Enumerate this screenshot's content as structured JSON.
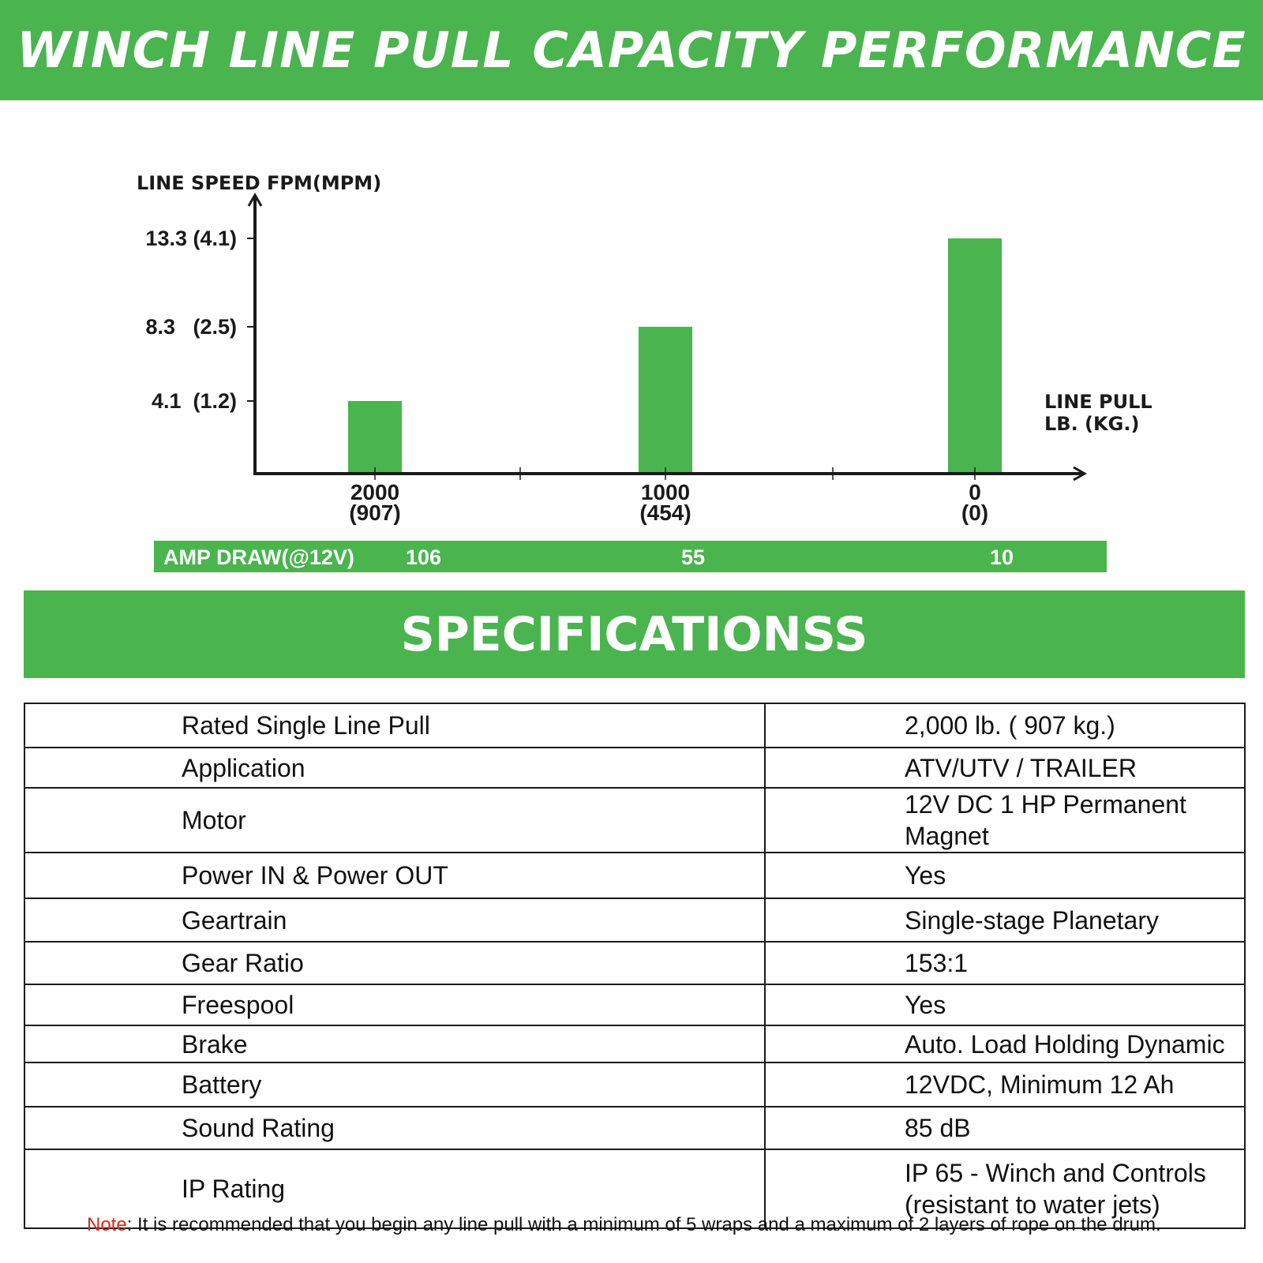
{
  "header": {
    "title": "WINCH LINE PULL CAPACITY PERFORMANCE"
  },
  "chart_data": {
    "type": "bar",
    "ylabel": "LINE SPEED FPM(MPM)",
    "xlabel_line1": "LINE PULL",
    "xlabel_line2": "LB. (KG.)",
    "ylim": [
      0,
      15
    ],
    "y_ticks": [
      {
        "value": 4.1,
        "label": "4.1  (1.2)"
      },
      {
        "value": 8.3,
        "label": "8.3   (2.5)"
      },
      {
        "value": 13.3,
        "label": "13.3 (4.1)"
      }
    ],
    "categories": [
      {
        "lb": "2000",
        "kg": "(907)"
      },
      {
        "lb": "1000",
        "kg": "(454)"
      },
      {
        "lb": "0",
        "kg": "(0)"
      }
    ],
    "values": [
      4.1,
      8.3,
      13.3
    ],
    "bar_color": "#4ab44f",
    "axis_color": "#1a1a1a"
  },
  "amp_draw": {
    "label": "AMP DRAW(@12V)",
    "values": [
      "106",
      "55",
      "10"
    ]
  },
  "specs": {
    "title": "SPECIFICATIONSS",
    "rows": [
      {
        "key": "Rated Single Line Pull",
        "value": "2,000 lb.  ( 907  kg.)"
      },
      {
        "key": "Application",
        "value": "ATV/UTV / TRAILER"
      },
      {
        "key": "Motor",
        "value": "12V DC 1 HP Permanent Magnet"
      },
      {
        "key": "Power IN & Power OUT",
        "value": "Yes"
      },
      {
        "key": "Geartrain",
        "value": "Single-stage Planetary"
      },
      {
        "key": "Gear Ratio",
        "value": "153:1"
      },
      {
        "key": "Freespool",
        "value": "Yes"
      },
      {
        "key": "Brake",
        "value": "Auto. Load Holding Dynamic"
      },
      {
        "key": "Battery",
        "value": "12VDC, Minimum 12 Ah"
      },
      {
        "key": "Sound Rating",
        "value": "85 dB"
      },
      {
        "key": "IP Rating",
        "value": "IP 65 - Winch and Controls",
        "value2": "(resistant to water jets)"
      }
    ]
  },
  "note": {
    "label": "Note",
    "text": ": It is recommended that you begin any line pull with a minimum of 5 wraps and a maximum of 2 layers of rope on the drum."
  },
  "colors": {
    "accent_green": "#4ab44f",
    "note_red": "#e0241b"
  }
}
